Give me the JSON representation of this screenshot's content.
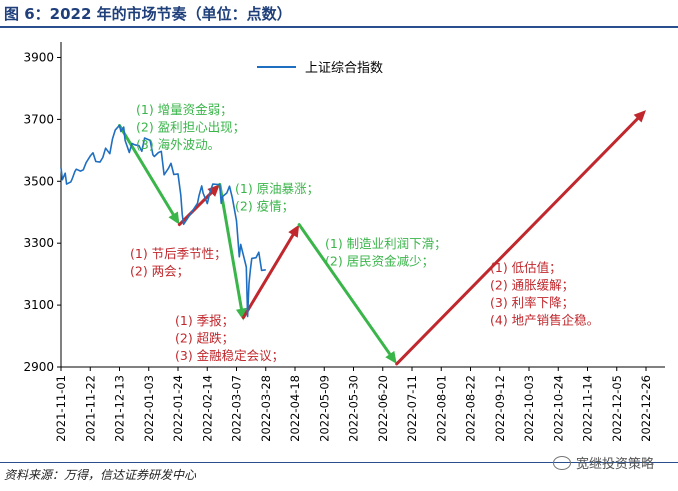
{
  "figure": {
    "title": "图 6：2022 年的市场节奏（单位：点数）",
    "source": "资料来源：万得，信达证券研发中心",
    "watermark": "宽继投资策略",
    "watermark_icon": "wechat-icon"
  },
  "chart_data": {
    "type": "line",
    "xlabel": "",
    "ylabel": "",
    "ylim": [
      2900,
      3950
    ],
    "yticks": [
      2900,
      3100,
      3300,
      3500,
      3700,
      3900
    ],
    "grid": false,
    "legend": {
      "position": "top-center",
      "entries": [
        "上证综合指数"
      ]
    },
    "x_tick_labels": [
      "2021-11-01",
      "2021-11-22",
      "2021-12-13",
      "2022-01-03",
      "2022-01-24",
      "2022-02-14",
      "2022-03-07",
      "2022-03-28",
      "2022-04-18",
      "2022-05-09",
      "2022-05-30",
      "2022-06-20",
      "2022-07-11",
      "2022-08-01",
      "2022-08-22",
      "2022-09-12",
      "2022-10-03",
      "2022-10-24",
      "2022-11-14",
      "2022-12-05",
      "2022-12-26"
    ],
    "series": [
      {
        "name": "上证综合指数",
        "color": "#1f6fc0",
        "points": [
          [
            "2021-11-01",
            3544
          ],
          [
            "2021-11-02",
            3505
          ],
          [
            "2021-11-04",
            3526
          ],
          [
            "2021-11-05",
            3491
          ],
          [
            "2021-11-08",
            3498
          ],
          [
            "2021-11-09",
            3507
          ],
          [
            "2021-11-11",
            3532
          ],
          [
            "2021-11-12",
            3539
          ],
          [
            "2021-11-15",
            3533
          ],
          [
            "2021-11-17",
            3537
          ],
          [
            "2021-11-19",
            3560
          ],
          [
            "2021-11-22",
            3582
          ],
          [
            "2021-11-24",
            3592
          ],
          [
            "2021-11-26",
            3564
          ],
          [
            "2021-11-29",
            3562
          ],
          [
            "2021-12-01",
            3577
          ],
          [
            "2021-12-03",
            3607
          ],
          [
            "2021-12-06",
            3589
          ],
          [
            "2021-12-08",
            3637
          ],
          [
            "2021-12-10",
            3666
          ],
          [
            "2021-12-13",
            3681
          ],
          [
            "2021-12-14",
            3661
          ],
          [
            "2021-12-16",
            3675
          ],
          [
            "2021-12-17",
            3632
          ],
          [
            "2021-12-20",
            3593
          ],
          [
            "2021-12-22",
            3622
          ],
          [
            "2021-12-24",
            3618
          ],
          [
            "2021-12-27",
            3615
          ],
          [
            "2021-12-29",
            3597
          ],
          [
            "2021-12-31",
            3640
          ],
          [
            "2022-01-04",
            3632
          ],
          [
            "2022-01-06",
            3586
          ],
          [
            "2022-01-07",
            3580
          ],
          [
            "2022-01-10",
            3593
          ],
          [
            "2022-01-12",
            3597
          ],
          [
            "2022-01-14",
            3521
          ],
          [
            "2022-01-17",
            3541
          ],
          [
            "2022-01-19",
            3558
          ],
          [
            "2022-01-21",
            3522
          ],
          [
            "2022-01-24",
            3524
          ],
          [
            "2022-01-26",
            3455
          ],
          [
            "2022-01-27",
            3394
          ],
          [
            "2022-01-28",
            3361
          ],
          [
            "2022-02-07",
            3429
          ],
          [
            "2022-02-08",
            3452
          ],
          [
            "2022-02-10",
            3485
          ],
          [
            "2022-02-11",
            3462
          ],
          [
            "2022-02-14",
            3428
          ],
          [
            "2022-02-16",
            3465
          ],
          [
            "2022-02-18",
            3491
          ],
          [
            "2022-02-21",
            3490
          ],
          [
            "2022-02-23",
            3489
          ],
          [
            "2022-02-24",
            3429
          ],
          [
            "2022-02-25",
            3451
          ],
          [
            "2022-02-28",
            3462
          ],
          [
            "2022-03-02",
            3484
          ],
          [
            "2022-03-04",
            3447
          ],
          [
            "2022-03-07",
            3372
          ],
          [
            "2022-03-09",
            3256
          ],
          [
            "2022-03-10",
            3296
          ],
          [
            "2022-03-14",
            3223
          ],
          [
            "2022-03-15",
            3063
          ],
          [
            "2022-03-16",
            3170
          ],
          [
            "2022-03-17",
            3215
          ],
          [
            "2022-03-18",
            3251
          ],
          [
            "2022-03-21",
            3253
          ],
          [
            "2022-03-23",
            3271
          ],
          [
            "2022-03-25",
            3212
          ],
          [
            "2022-03-28",
            3214
          ]
        ]
      }
    ],
    "annotations": [
      {
        "lines": [
          "(1) 增量资金弱；",
          "(2) 盈利担心出现；",
          "(3) 海外波动。"
        ],
        "color": "#3ab54a"
      },
      {
        "lines": [
          "(1) 节后季节性；",
          "(2) 两会；"
        ],
        "color": "#c0282d"
      },
      {
        "lines": [
          "(1) 原油暴涨；",
          "(2) 疫情；"
        ],
        "color": "#3ab54a"
      },
      {
        "lines": [
          "(1) 季报；",
          "(2) 超跌；",
          "(3) 金融稳定会议；"
        ],
        "color": "#c0282d"
      },
      {
        "lines": [
          "(1) 制造业利润下滑；",
          "(2) 居民资金减少；"
        ],
        "color": "#3ab54a"
      },
      {
        "lines": [
          "(1)  低估值；",
          "(2)  通胀缓解；",
          "(3)  利率下降；",
          "(4)  地产销售企稳。"
        ],
        "color": "#c0282d"
      }
    ],
    "arrows": [
      {
        "from": [
          "2021-12-13",
          3680
        ],
        "to": [
          "2022-01-25",
          3360
        ],
        "color": "#3ab54a"
      },
      {
        "from": [
          "2022-01-25",
          3360
        ],
        "to": [
          "2022-02-23",
          3490
        ],
        "color": "#c0282d"
      },
      {
        "from": [
          "2022-02-23",
          3490
        ],
        "to": [
          "2022-03-12",
          3050
        ],
        "color": "#3ab54a"
      },
      {
        "from": [
          "2022-03-12",
          3060
        ],
        "to": [
          "2022-04-21",
          3360
        ],
        "color": "#c0282d"
      },
      {
        "from": [
          "2022-04-21",
          3360
        ],
        "to": [
          "2022-06-30",
          2910
        ],
        "color": "#3ab54a"
      },
      {
        "from": [
          "2022-06-30",
          2910
        ],
        "to": [
          "2022-12-26",
          3730
        ],
        "color": "#c0282d"
      }
    ]
  }
}
